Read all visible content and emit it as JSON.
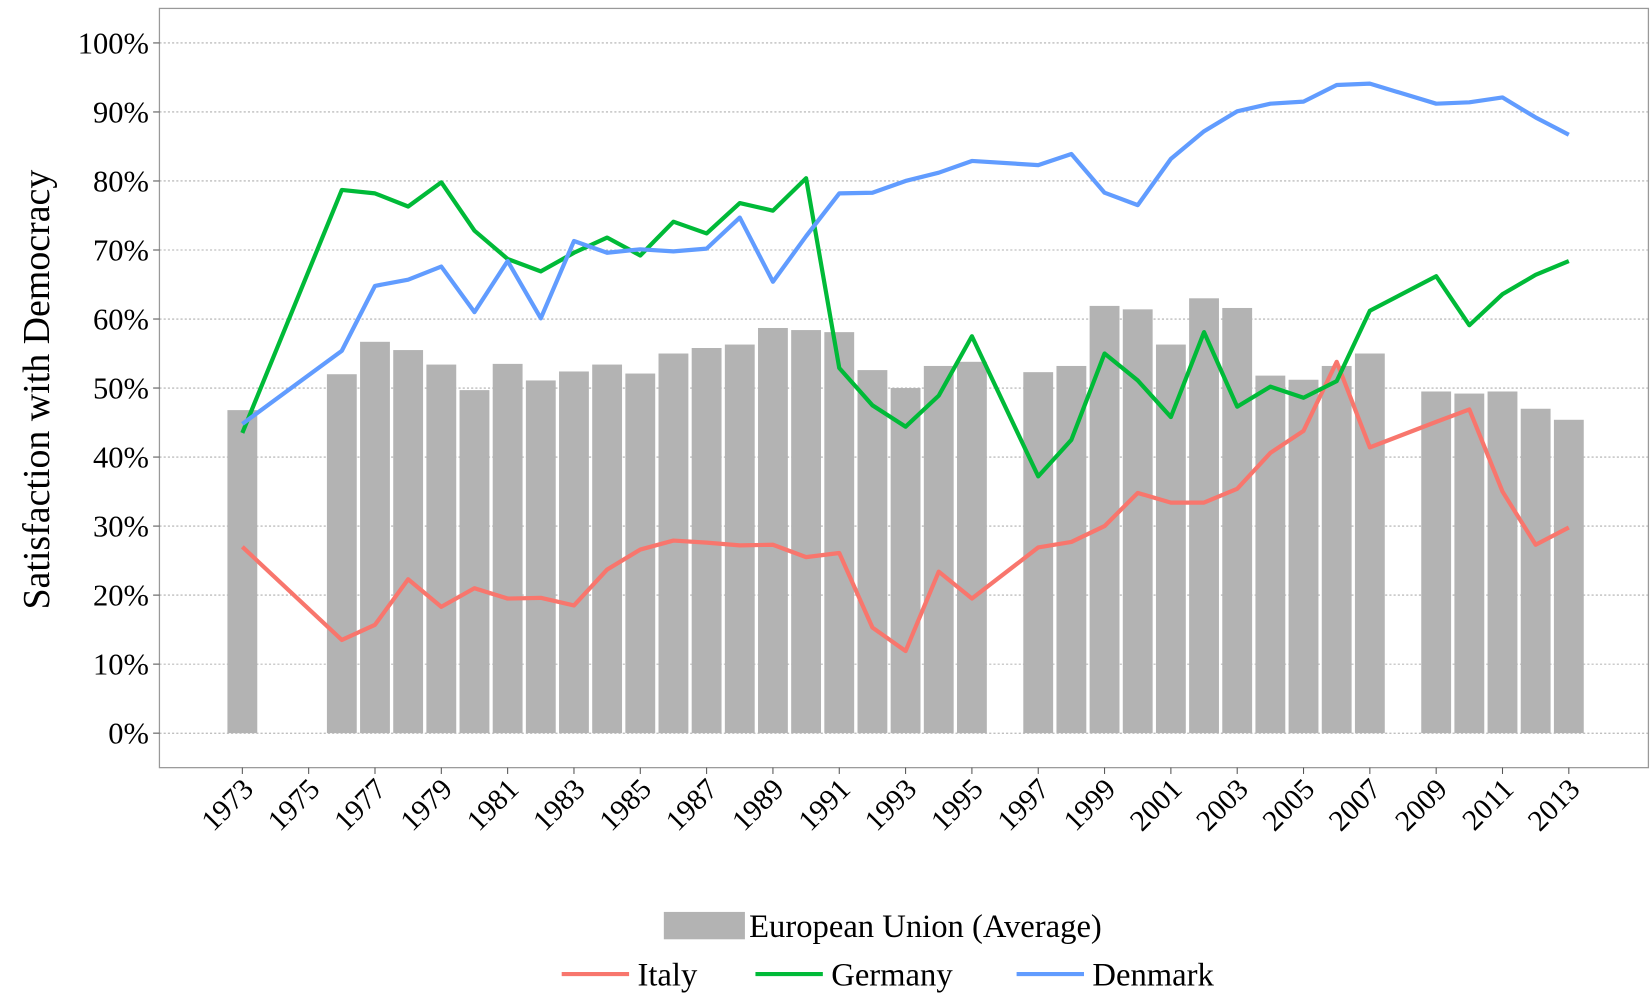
{
  "chart_data": {
    "type": "combo",
    "ylabel": "Satisfaction with Democracy",
    "xlim": [
      1970.5,
      2015.4
    ],
    "xticks": [
      1973,
      1975,
      1977,
      1979,
      1981,
      1983,
      1985,
      1987,
      1989,
      1991,
      1993,
      1995,
      1997,
      1999,
      2001,
      2003,
      2005,
      2007,
      2009,
      2011,
      2013
    ],
    "ylim": [
      -5,
      105
    ],
    "yticks": [
      {
        "value": 0,
        "label": "0%"
      },
      {
        "value": 10,
        "label": "10%"
      },
      {
        "value": 20,
        "label": "20%"
      },
      {
        "value": 30,
        "label": "30%"
      },
      {
        "value": 40,
        "label": "40%"
      },
      {
        "value": 50,
        "label": "50%"
      },
      {
        "value": 60,
        "label": "60%"
      },
      {
        "value": 70,
        "label": "70%"
      },
      {
        "value": 80,
        "label": "80%"
      },
      {
        "value": 90,
        "label": "90%"
      },
      {
        "value": 100,
        "label": "100%"
      }
    ],
    "grid": true,
    "legend": "bottom",
    "series": [
      {
        "name": "European Union (Average)",
        "type": "bar",
        "color": "#b3b3b3",
        "x": [
          1973,
          1976,
          1977,
          1978,
          1979,
          1980,
          1981,
          1982,
          1983,
          1984,
          1985,
          1986,
          1987,
          1988,
          1989,
          1990,
          1991,
          1992,
          1993,
          1994,
          1995,
          1997,
          1998,
          1999,
          2000,
          2001,
          2002,
          2003,
          2004,
          2005,
          2006,
          2007,
          2009,
          2010,
          2011,
          2012,
          2013
        ],
        "values": [
          46.8,
          52.0,
          56.7,
          55.5,
          53.4,
          49.7,
          53.5,
          51.1,
          52.4,
          53.4,
          52.1,
          55.0,
          55.8,
          56.3,
          58.7,
          58.4,
          58.1,
          52.6,
          50.0,
          53.2,
          53.8,
          52.3,
          53.2,
          61.9,
          61.4,
          56.3,
          63.0,
          61.6,
          51.8,
          51.2,
          53.2,
          55.0,
          49.5,
          49.2,
          49.5,
          47.0,
          45.4
        ]
      },
      {
        "name": "Italy",
        "type": "line",
        "color": "#f8766d",
        "x": [
          1973,
          1976,
          1977,
          1978,
          1979,
          1980,
          1981,
          1982,
          1983,
          1984,
          1985,
          1986,
          1987,
          1988,
          1989,
          1990,
          1991,
          1992,
          1993,
          1994,
          1995,
          1997,
          1998,
          1999,
          2000,
          2001,
          2002,
          2003,
          2004,
          2005,
          2006,
          2007,
          2009,
          2010,
          2011,
          2012,
          2013
        ],
        "values": [
          27.0,
          13.5,
          15.7,
          22.3,
          18.3,
          21.0,
          19.5,
          19.6,
          18.5,
          23.7,
          26.6,
          27.9,
          27.6,
          27.2,
          27.3,
          25.5,
          26.1,
          15.3,
          11.9,
          23.4,
          19.5,
          26.9,
          27.7,
          30.0,
          34.8,
          33.4,
          33.4,
          35.4,
          40.6,
          43.8,
          53.8,
          41.4,
          45.1,
          46.9,
          35.0,
          27.3,
          29.8
        ]
      },
      {
        "name": "Germany",
        "type": "line",
        "color": "#00ba38",
        "x": [
          1973,
          1976,
          1977,
          1978,
          1979,
          1980,
          1981,
          1982,
          1983,
          1984,
          1985,
          1986,
          1987,
          1988,
          1989,
          1990,
          1991,
          1992,
          1993,
          1994,
          1995,
          1997,
          1998,
          1999,
          2000,
          2001,
          2002,
          2003,
          2004,
          2005,
          2006,
          2007,
          2009,
          2010,
          2011,
          2012,
          2013
        ],
        "values": [
          43.5,
          78.7,
          78.2,
          76.3,
          79.8,
          72.8,
          68.7,
          66.9,
          69.6,
          71.8,
          69.2,
          74.1,
          72.4,
          76.8,
          75.7,
          80.4,
          52.9,
          47.5,
          44.4,
          48.9,
          57.5,
          37.2,
          42.5,
          55.0,
          51.1,
          45.8,
          58.1,
          47.3,
          50.2,
          48.6,
          51.0,
          61.2,
          66.2,
          59.1,
          63.6,
          66.4,
          68.4
        ]
      },
      {
        "name": "Denmark",
        "type": "line",
        "color": "#619cff",
        "x": [
          1973,
          1976,
          1977,
          1978,
          1979,
          1980,
          1981,
          1982,
          1983,
          1984,
          1985,
          1986,
          1987,
          1988,
          1989,
          1990,
          1991,
          1992,
          1993,
          1994,
          1995,
          1997,
          1998,
          1999,
          2000,
          2001,
          2002,
          2003,
          2004,
          2005,
          2006,
          2007,
          2009,
          2010,
          2011,
          2012,
          2013
        ],
        "values": [
          44.8,
          55.4,
          64.8,
          65.7,
          67.6,
          61.0,
          68.4,
          60.1,
          71.3,
          69.6,
          70.1,
          69.8,
          70.2,
          74.7,
          65.4,
          72.0,
          78.2,
          78.3,
          80.0,
          81.2,
          82.9,
          82.3,
          83.9,
          78.3,
          76.5,
          83.2,
          87.2,
          90.1,
          91.2,
          91.5,
          93.9,
          94.1,
          91.2,
          91.4,
          92.1,
          89.2,
          86.7
        ]
      }
    ]
  }
}
